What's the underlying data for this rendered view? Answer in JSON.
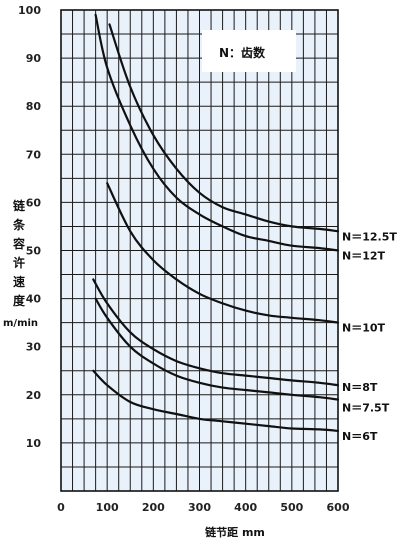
{
  "chart_data": {
    "type": "line",
    "xlabel": "链节距 mm",
    "ylabel_chars": [
      "链",
      "条",
      "容",
      "许",
      "速",
      "度"
    ],
    "ylabel_unit": "m/min",
    "note": "N：齿数",
    "xlim": [
      0,
      600
    ],
    "ylim": [
      0,
      100
    ],
    "xticks": [
      "0",
      "100",
      "200",
      "300",
      "400",
      "500",
      "600"
    ],
    "yticks": [
      "10",
      "20",
      "30",
      "40",
      "50",
      "60",
      "70",
      "80",
      "90",
      "100"
    ],
    "grid": true,
    "series": [
      {
        "name": "N＝12.5T",
        "points": [
          [
            105,
            97
          ],
          [
            150,
            84
          ],
          [
            200,
            74
          ],
          [
            250,
            67
          ],
          [
            300,
            62
          ],
          [
            350,
            59
          ],
          [
            400,
            57.5
          ],
          [
            450,
            56
          ],
          [
            500,
            55
          ],
          [
            560,
            54.5
          ],
          [
            600,
            54
          ]
        ]
      },
      {
        "name": "N＝12T",
        "points": [
          [
            75,
            99
          ],
          [
            100,
            88
          ],
          [
            150,
            76
          ],
          [
            200,
            67
          ],
          [
            250,
            61
          ],
          [
            300,
            57.5
          ],
          [
            350,
            55
          ],
          [
            400,
            53
          ],
          [
            450,
            52
          ],
          [
            500,
            51
          ],
          [
            560,
            50.5
          ],
          [
            600,
            50
          ]
        ]
      },
      {
        "name": "N＝10T",
        "points": [
          [
            100,
            64
          ],
          [
            150,
            54
          ],
          [
            200,
            48
          ],
          [
            250,
            44
          ],
          [
            300,
            41
          ],
          [
            350,
            39
          ],
          [
            400,
            37.5
          ],
          [
            450,
            36.5
          ],
          [
            500,
            36
          ],
          [
            560,
            35.5
          ],
          [
            600,
            35
          ]
        ]
      },
      {
        "name": "N＝8T",
        "points": [
          [
            70,
            44
          ],
          [
            100,
            39
          ],
          [
            150,
            33
          ],
          [
            200,
            29.5
          ],
          [
            250,
            27
          ],
          [
            300,
            25.5
          ],
          [
            350,
            24.5
          ],
          [
            400,
            24
          ],
          [
            450,
            23.5
          ],
          [
            500,
            23
          ],
          [
            560,
            22.5
          ],
          [
            600,
            22
          ]
        ]
      },
      {
        "name": "N＝7.5T",
        "points": [
          [
            75,
            40
          ],
          [
            100,
            36
          ],
          [
            150,
            30
          ],
          [
            200,
            26.5
          ],
          [
            250,
            24
          ],
          [
            300,
            22.5
          ],
          [
            350,
            21.5
          ],
          [
            400,
            21
          ],
          [
            450,
            20.5
          ],
          [
            500,
            20
          ],
          [
            560,
            19.5
          ],
          [
            600,
            19
          ]
        ]
      },
      {
        "name": "N＝6T",
        "points": [
          [
            70,
            25
          ],
          [
            100,
            22
          ],
          [
            150,
            18.5
          ],
          [
            200,
            17
          ],
          [
            250,
            16
          ],
          [
            300,
            15
          ],
          [
            350,
            14.5
          ],
          [
            400,
            14
          ],
          [
            450,
            13.5
          ],
          [
            500,
            13
          ],
          [
            560,
            12.8
          ],
          [
            600,
            12.5
          ]
        ]
      }
    ]
  }
}
